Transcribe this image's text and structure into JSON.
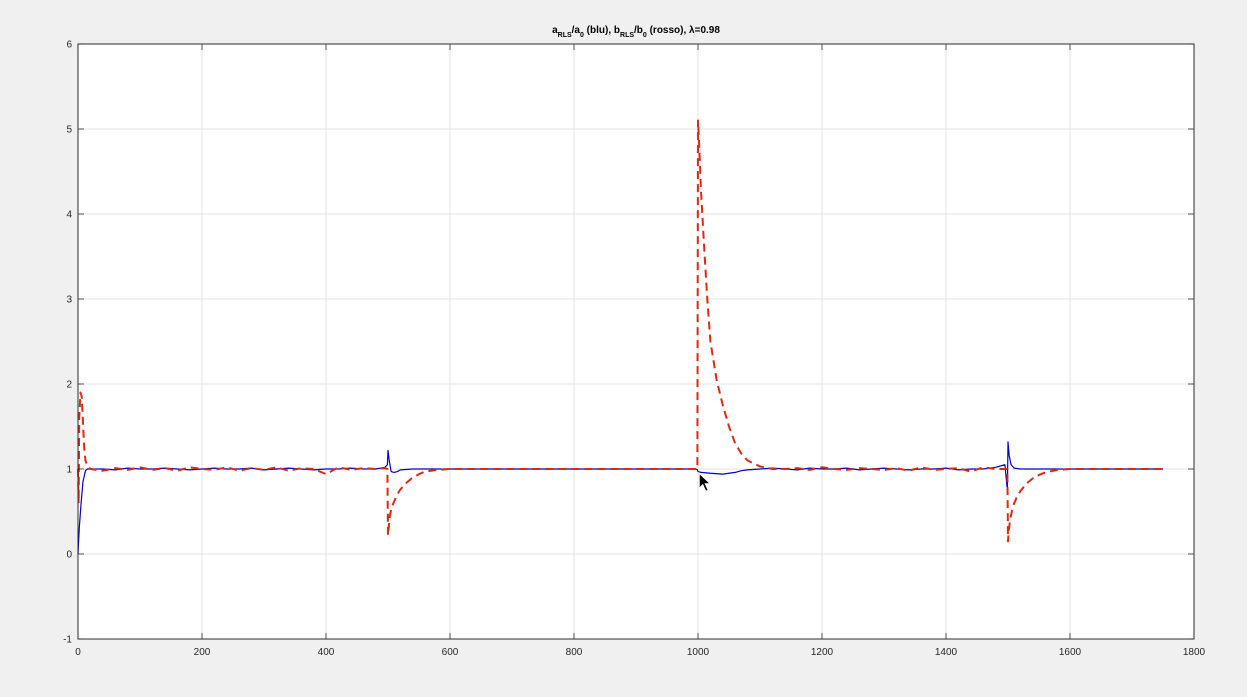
{
  "chart_data": {
    "type": "line",
    "title": {
      "parts": [
        {
          "text": "a",
          "sub": false
        },
        {
          "text": "RLS",
          "sub": true
        },
        {
          "text": "/a",
          "sub": false
        },
        {
          "text": "0",
          "sub": true
        },
        {
          "text": " (blu), b",
          "sub": false
        },
        {
          "text": "RLS",
          "sub": true
        },
        {
          "text": "/b",
          "sub": false
        },
        {
          "text": "0",
          "sub": true
        },
        {
          "text": " (rosso), λ=0.98",
          "sub": false
        }
      ]
    },
    "xlabel": "",
    "ylabel": "",
    "xlim": [
      0,
      1800
    ],
    "ylim": [
      -1,
      6
    ],
    "xticks": [
      0,
      200,
      400,
      600,
      800,
      1000,
      1200,
      1400,
      1600,
      1800
    ],
    "yticks": [
      -1,
      0,
      1,
      2,
      3,
      4,
      5,
      6
    ],
    "grid": true,
    "series": [
      {
        "color": "#0000cc",
        "style": "solid",
        "x": [
          0,
          2,
          5,
          8,
          12,
          15,
          20,
          40,
          60,
          80,
          100,
          120,
          140,
          160,
          180,
          200,
          220,
          240,
          260,
          280,
          300,
          320,
          340,
          360,
          380,
          400,
          420,
          440,
          460,
          480,
          495,
          499,
          500,
          502,
          505,
          510,
          515,
          520,
          540,
          560,
          600,
          700,
          800,
          900,
          995,
          999,
          1000,
          1005,
          1020,
          1040,
          1060,
          1070,
          1080,
          1100,
          1120,
          1140,
          1160,
          1180,
          1200,
          1220,
          1240,
          1260,
          1280,
          1300,
          1320,
          1340,
          1360,
          1380,
          1400,
          1420,
          1440,
          1460,
          1480,
          1495,
          1499,
          1500,
          1502,
          1505,
          1510,
          1520,
          1540,
          1560,
          1600,
          1700,
          1750
        ],
        "y": [
          0.0,
          0.3,
          0.6,
          0.85,
          0.98,
          1.0,
          1.0,
          1.0,
          0.99,
          1.01,
          1.0,
          1.0,
          1.01,
          1.0,
          0.99,
          1.0,
          1.01,
          1.0,
          1.0,
          1.01,
          0.99,
          1.0,
          1.01,
          1.0,
          0.99,
          1.0,
          1.0,
          1.01,
          1.0,
          1.0,
          1.02,
          1.05,
          1.22,
          1.1,
          0.97,
          0.96,
          0.97,
          0.99,
          1.0,
          1.0,
          1.0,
          1.0,
          1.0,
          1.0,
          1.0,
          0.99,
          0.97,
          0.96,
          0.95,
          0.94,
          0.96,
          0.98,
          0.99,
          1.0,
          1.01,
          1.0,
          0.99,
          1.01,
          1.0,
          1.0,
          1.01,
          0.99,
          1.0,
          1.01,
          1.0,
          0.99,
          1.0,
          1.0,
          1.01,
          0.99,
          1.0,
          1.0,
          1.02,
          1.05,
          0.75,
          1.32,
          1.15,
          1.05,
          1.01,
          1.0,
          1.0,
          1.0,
          1.0,
          1.0,
          1.0
        ]
      },
      {
        "color": "#dd2a0e",
        "style": "dashed",
        "x": [
          0,
          1,
          2,
          4,
          6,
          8,
          10,
          12,
          15,
          20,
          40,
          60,
          80,
          100,
          120,
          140,
          160,
          180,
          200,
          220,
          240,
          260,
          280,
          300,
          320,
          340,
          360,
          380,
          400,
          420,
          440,
          460,
          480,
          495,
          499,
          500,
          501,
          503,
          506,
          510,
          515,
          520,
          530,
          540,
          550,
          560,
          580,
          600,
          700,
          800,
          900,
          998,
          999,
          1000,
          1002,
          1005,
          1010,
          1015,
          1020,
          1030,
          1040,
          1050,
          1060,
          1070,
          1080,
          1100,
          1120,
          1140,
          1160,
          1180,
          1200,
          1220,
          1240,
          1260,
          1280,
          1300,
          1320,
          1340,
          1360,
          1380,
          1400,
          1420,
          1440,
          1460,
          1480,
          1495,
          1499,
          1500,
          1501,
          1503,
          1506,
          1510,
          1515,
          1520,
          1530,
          1540,
          1550,
          1560,
          1580,
          1600,
          1700,
          1750
        ],
        "y": [
          1.0,
          0.6,
          1.6,
          1.9,
          1.85,
          1.55,
          1.25,
          1.1,
          1.04,
          1.0,
          0.98,
          1.01,
          0.99,
          1.02,
          0.99,
          1.01,
          0.98,
          1.02,
          1.0,
          0.99,
          1.02,
          0.98,
          1.01,
          0.99,
          1.02,
          0.98,
          1.01,
          1.0,
          0.94,
          1.02,
          0.99,
          1.01,
          1.0,
          1.01,
          1.0,
          0.22,
          0.3,
          0.45,
          0.55,
          0.62,
          0.7,
          0.76,
          0.84,
          0.9,
          0.94,
          0.97,
          0.99,
          1.0,
          1.0,
          1.0,
          1.0,
          1.0,
          1.0,
          5.1,
          4.8,
          4.25,
          3.6,
          3.0,
          2.5,
          2.05,
          1.75,
          1.5,
          1.3,
          1.18,
          1.1,
          1.03,
          1.0,
          1.0,
          1.01,
          0.99,
          1.02,
          1.0,
          0.99,
          1.01,
          1.0,
          0.99,
          1.01,
          0.98,
          1.02,
          0.99,
          1.0,
          1.01,
          0.97,
          1.02,
          1.0,
          1.0,
          1.0,
          0.15,
          0.25,
          0.38,
          0.5,
          0.6,
          0.68,
          0.74,
          0.83,
          0.89,
          0.93,
          0.96,
          0.99,
          1.0,
          1.0,
          1.0
        ]
      }
    ]
  },
  "cursor": {
    "shape": "arrow",
    "x": 1002,
    "y": 0.95
  }
}
